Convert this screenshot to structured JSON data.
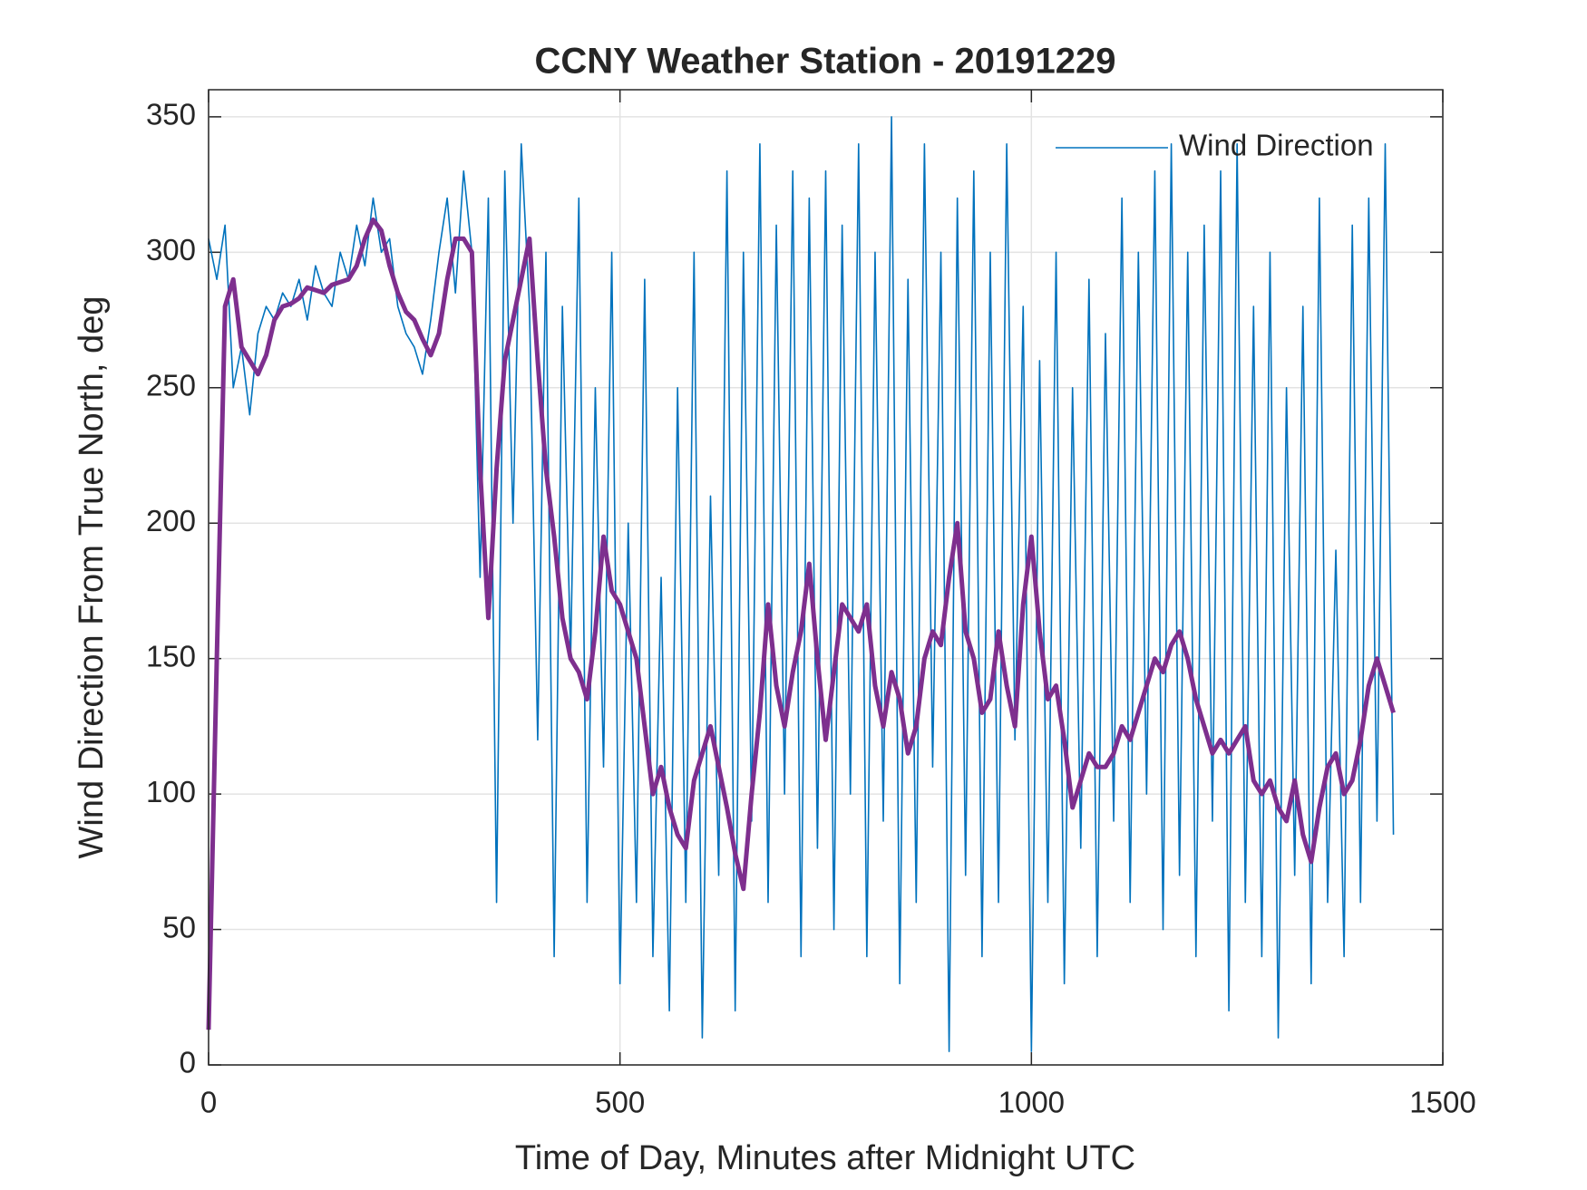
{
  "chart_data": {
    "type": "line",
    "title": "CCNY Weather Station - 20191229",
    "xlabel": "Time of Day, Minutes after Midnight UTC",
    "ylabel": "Wind Direction From True North, deg",
    "x": [
      0,
      10,
      20,
      30,
      40,
      50,
      60,
      70,
      80,
      90,
      100,
      110,
      120,
      130,
      140,
      150,
      160,
      170,
      180,
      190,
      200,
      210,
      220,
      230,
      240,
      250,
      260,
      270,
      280,
      290,
      300,
      310,
      320,
      330,
      340,
      350,
      360,
      370,
      380,
      390,
      400,
      410,
      420,
      430,
      440,
      450,
      460,
      470,
      480,
      490,
      500,
      510,
      520,
      530,
      540,
      550,
      560,
      570,
      580,
      590,
      600,
      610,
      620,
      630,
      640,
      650,
      660,
      670,
      680,
      690,
      700,
      710,
      720,
      730,
      740,
      750,
      760,
      770,
      780,
      790,
      800,
      810,
      820,
      830,
      840,
      850,
      860,
      870,
      880,
      890,
      900,
      910,
      920,
      930,
      940,
      950,
      960,
      970,
      980,
      990,
      1000,
      1010,
      1020,
      1030,
      1040,
      1050,
      1060,
      1070,
      1080,
      1090,
      1100,
      1110,
      1120,
      1130,
      1140,
      1150,
      1160,
      1170,
      1180,
      1190,
      1200,
      1210,
      1220,
      1230,
      1240,
      1250,
      1260,
      1270,
      1280,
      1290,
      1300,
      1310,
      1320,
      1330,
      1340,
      1350,
      1360,
      1370,
      1380,
      1390,
      1400,
      1410,
      1420,
      1430,
      1440
    ],
    "series": [
      {
        "name": "Wind Direction",
        "color": "#0072bd",
        "values": [
          305,
          290,
          310,
          250,
          265,
          240,
          270,
          280,
          275,
          285,
          280,
          290,
          275,
          295,
          285,
          280,
          300,
          290,
          310,
          295,
          320,
          300,
          305,
          280,
          270,
          265,
          255,
          275,
          300,
          320,
          285,
          330,
          300,
          180,
          320,
          60,
          330,
          200,
          340,
          280,
          120,
          300,
          40,
          280,
          150,
          320,
          60,
          250,
          110,
          300,
          30,
          200,
          60,
          290,
          40,
          180,
          20,
          250,
          60,
          300,
          10,
          210,
          70,
          330,
          20,
          300,
          90,
          340,
          60,
          310,
          100,
          330,
          40,
          320,
          80,
          330,
          50,
          310,
          100,
          340,
          40,
          300,
          90,
          350,
          30,
          290,
          60,
          340,
          110,
          300,
          5,
          320,
          70,
          330,
          40,
          300,
          60,
          340,
          120,
          280,
          5,
          260,
          60,
          300,
          30,
          250,
          80,
          290,
          40,
          270,
          90,
          320,
          60,
          300,
          100,
          330,
          50,
          340,
          70,
          300,
          40,
          310,
          90,
          330,
          20,
          340,
          60,
          280,
          40,
          300,
          10,
          250,
          70,
          280,
          30,
          320,
          60,
          190,
          40,
          310,
          60,
          320,
          90,
          340,
          85
        ]
      },
      {
        "color": "#7e2f8e",
        "values": [
          13,
          150,
          280,
          290,
          265,
          260,
          255,
          262,
          275,
          280,
          281,
          283,
          287,
          286,
          285,
          288,
          289,
          290,
          295,
          305,
          312,
          308,
          295,
          285,
          278,
          275,
          268,
          262,
          270,
          290,
          305,
          305,
          300,
          220,
          165,
          220,
          260,
          275,
          290,
          305,
          260,
          220,
          195,
          165,
          150,
          145,
          135,
          160,
          195,
          175,
          170,
          160,
          150,
          125,
          100,
          110,
          95,
          85,
          80,
          105,
          115,
          125,
          110,
          95,
          78,
          65,
          100,
          130,
          170,
          140,
          125,
          145,
          160,
          185,
          150,
          120,
          145,
          170,
          165,
          160,
          170,
          140,
          125,
          145,
          135,
          115,
          125,
          150,
          160,
          155,
          180,
          200,
          160,
          150,
          130,
          135,
          160,
          140,
          125,
          170,
          195,
          160,
          135,
          140,
          120,
          95,
          105,
          115,
          110,
          110,
          115,
          125,
          120,
          130,
          140,
          150,
          145,
          155,
          160,
          150,
          135,
          125,
          115,
          120,
          115,
          120,
          125,
          105,
          100,
          105,
          95,
          90,
          105,
          85,
          75,
          95,
          110,
          115,
          100,
          105,
          120,
          140,
          150,
          140,
          130
        ]
      }
    ],
    "xlim": [
      0,
      1500
    ],
    "xticks": [
      0,
      500,
      1000,
      1500
    ],
    "ylim": [
      0,
      360
    ],
    "yticks": [
      0,
      50,
      100,
      150,
      200,
      250,
      300,
      350
    ],
    "grid": true,
    "legend": "northeast"
  }
}
